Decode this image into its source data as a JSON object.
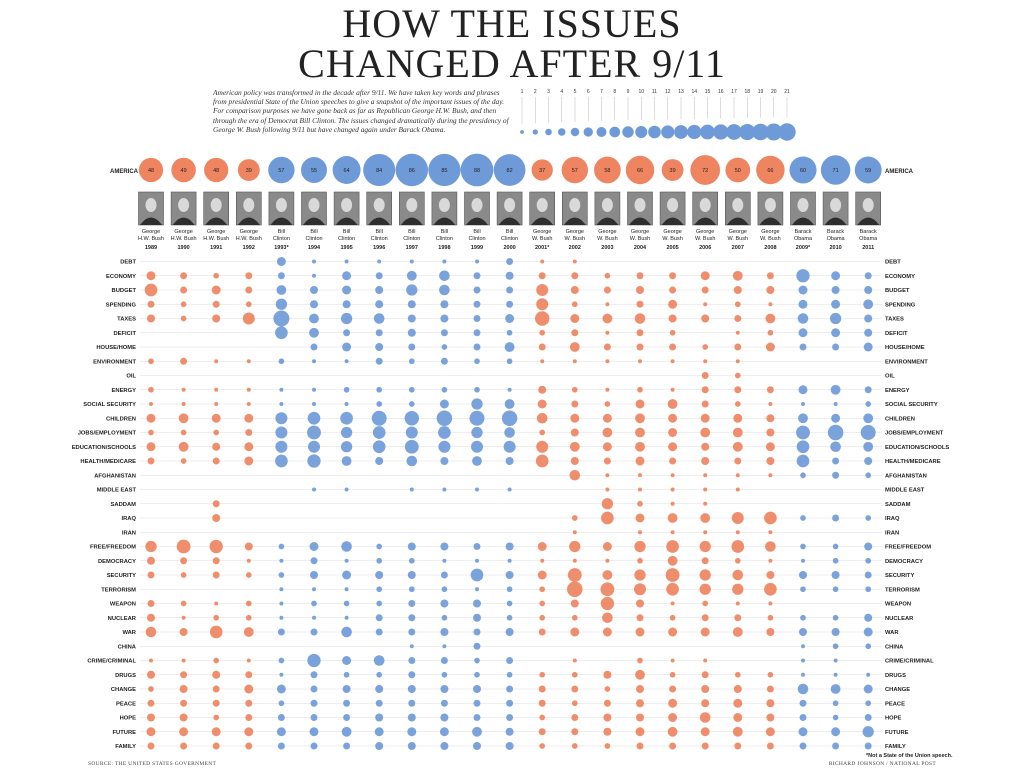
{
  "title_line1": "HOW THE ISSUES",
  "title_line2": "CHANGED AFTER 9/11",
  "intro": "American policy was transformed in the decade after 9/11. We have taken key words and phrases from presidential State of the Union speeches to give a snapshot of the important issues of the day. For comparison purposes we have gone back as far as Republican George H.W. Bush, and then through the era of Democrat Bill Clinton. The issues changed dramatically during the presidency of George W. Bush following 9/11 but have changed again under Barack Obama.",
  "source": "SOURCE: THE UNITED STATES GOVERNMENT",
  "credit": "RICHARD JOHNSON / NATIONAL POST",
  "footnote": "*Not a State of the Union speech.",
  "colors": {
    "republican": "#EE8460",
    "democrat": "#6F9AD8",
    "line": "#dddddd"
  },
  "chart_data": {
    "type": "scatter",
    "title": "HOW THE ISSUES CHANGED AFTER 9/11",
    "size_legend": {
      "values": [
        1,
        2,
        3,
        4,
        5,
        6,
        7,
        8,
        9,
        10,
        11,
        12,
        13,
        14,
        15,
        16,
        17,
        18,
        19,
        20,
        21
      ]
    },
    "row_label_america": "AMERICA",
    "columns": [
      {
        "president": "George H.W. Bush",
        "line1": "George",
        "line2": "H.W. Bush",
        "year": "1989",
        "party": "R",
        "america": 48,
        "portrait": "portrait-icon"
      },
      {
        "president": "George H.W. Bush",
        "line1": "George",
        "line2": "H.W. Bush",
        "year": "1990",
        "party": "R",
        "america": 49,
        "portrait": "portrait-icon"
      },
      {
        "president": "George H.W. Bush",
        "line1": "George",
        "line2": "H.W. Bush",
        "year": "1991",
        "party": "R",
        "america": 48,
        "portrait": "portrait-icon"
      },
      {
        "president": "George H.W. Bush",
        "line1": "George",
        "line2": "H.W. Bush",
        "year": "1992",
        "party": "R",
        "america": 39,
        "portrait": "portrait-icon"
      },
      {
        "president": "Bill Clinton",
        "line1": "Bill",
        "line2": "Clinton",
        "year": "1993*",
        "party": "D",
        "america": 57,
        "portrait": "portrait-icon"
      },
      {
        "president": "Bill Clinton",
        "line1": "Bill",
        "line2": "Clinton",
        "year": "1994",
        "party": "D",
        "america": 55,
        "portrait": "portrait-icon"
      },
      {
        "president": "Bill Clinton",
        "line1": "Bill",
        "line2": "Clinton",
        "year": "1995",
        "party": "D",
        "america": 64,
        "portrait": "portrait-icon"
      },
      {
        "president": "Bill Clinton",
        "line1": "Bill",
        "line2": "Clinton",
        "year": "1996",
        "party": "D",
        "america": 84,
        "portrait": "portrait-icon"
      },
      {
        "president": "Bill Clinton",
        "line1": "Bill",
        "line2": "Clinton",
        "year": "1997",
        "party": "D",
        "america": 86,
        "portrait": "portrait-icon"
      },
      {
        "president": "Bill Clinton",
        "line1": "Bill",
        "line2": "Clinton",
        "year": "1998",
        "party": "D",
        "america": 85,
        "portrait": "portrait-icon"
      },
      {
        "president": "Bill Clinton",
        "line1": "Bill",
        "line2": "Clinton",
        "year": "1999",
        "party": "D",
        "america": 88,
        "portrait": "portrait-icon"
      },
      {
        "president": "Bill Clinton",
        "line1": "Bill",
        "line2": "Clinton",
        "year": "2000",
        "party": "D",
        "america": 82,
        "portrait": "portrait-icon"
      },
      {
        "president": "George W. Bush",
        "line1": "George",
        "line2": "W. Bush",
        "year": "2001*",
        "party": "R",
        "america": 37,
        "portrait": "portrait-icon"
      },
      {
        "president": "George W. Bush",
        "line1": "George",
        "line2": "W. Bush",
        "year": "2002",
        "party": "R",
        "america": 57,
        "portrait": "portrait-icon"
      },
      {
        "president": "George W. Bush",
        "line1": "George",
        "line2": "W. Bush",
        "year": "2003",
        "party": "R",
        "america": 58,
        "portrait": "portrait-icon"
      },
      {
        "president": "George W. Bush",
        "line1": "George",
        "line2": "W. Bush",
        "year": "2004",
        "party": "R",
        "america": 66,
        "portrait": "portrait-icon"
      },
      {
        "president": "George W. Bush",
        "line1": "George",
        "line2": "W. Bush",
        "year": "2005",
        "party": "R",
        "america": 39,
        "portrait": "portrait-icon"
      },
      {
        "president": "George W. Bush",
        "line1": "George",
        "line2": "W. Bush",
        "year": "2006",
        "party": "R",
        "america": 72,
        "portrait": "portrait-icon"
      },
      {
        "president": "George W. Bush",
        "line1": "George",
        "line2": "W. Bush",
        "year": "2007",
        "party": "R",
        "america": 50,
        "portrait": "portrait-icon"
      },
      {
        "president": "George W. Bush",
        "line1": "George",
        "line2": "W. Bush",
        "year": "2008",
        "party": "R",
        "america": 66,
        "portrait": "portrait-icon"
      },
      {
        "president": "Barack Obama",
        "line1": "Barack",
        "line2": "Obama",
        "year": "2009*",
        "party": "D",
        "america": 60,
        "portrait": "portrait-icon"
      },
      {
        "president": "Barack Obama",
        "line1": "Barack",
        "line2": "Obama",
        "year": "2010",
        "party": "D",
        "america": 71,
        "portrait": "portrait-icon"
      },
      {
        "president": "Barack Obama",
        "line1": "Barack",
        "line2": "Obama",
        "year": "2011",
        "party": "D",
        "america": 59,
        "portrait": "portrait-icon"
      }
    ],
    "issues": [
      {
        "name": "DEBT",
        "values": [
          0,
          0,
          0,
          0,
          5,
          1,
          1,
          1,
          1,
          1,
          1,
          3,
          1,
          1,
          0,
          0,
          0,
          0,
          0,
          0,
          0,
          0,
          0
        ]
      },
      {
        "name": "ECONOMY",
        "values": [
          5,
          3,
          2,
          3,
          3,
          1,
          5,
          3,
          6,
          7,
          3,
          4,
          3,
          3,
          2,
          3,
          3,
          5,
          6,
          3,
          11,
          5,
          3
        ]
      },
      {
        "name": "BUDGET",
        "values": [
          10,
          3,
          5,
          3,
          6,
          4,
          5,
          4,
          8,
          7,
          3,
          3,
          9,
          4,
          3,
          4,
          3,
          3,
          4,
          4,
          5,
          4,
          4
        ]
      },
      {
        "name": "SPENDING",
        "values": [
          3,
          2,
          3,
          2,
          8,
          4,
          4,
          4,
          4,
          4,
          3,
          3,
          9,
          2,
          1,
          3,
          5,
          1,
          2,
          1,
          5,
          5,
          6
        ]
      },
      {
        "name": "TAXES",
        "values": [
          4,
          2,
          4,
          9,
          16,
          6,
          8,
          7,
          4,
          4,
          3,
          5,
          13,
          5,
          6,
          7,
          4,
          4,
          3,
          6,
          7,
          8,
          4
        ]
      },
      {
        "name": "DEFICIT",
        "values": [
          0,
          0,
          0,
          0,
          10,
          6,
          3,
          3,
          4,
          3,
          3,
          2,
          2,
          3,
          1,
          3,
          2,
          0,
          1,
          2,
          5,
          5,
          4
        ]
      },
      {
        "name": "HOUSE/HOME",
        "values": [
          0,
          0,
          0,
          0,
          0,
          3,
          5,
          4,
          3,
          2,
          3,
          6,
          3,
          6,
          3,
          3,
          3,
          2,
          3,
          5,
          3,
          3,
          5
        ]
      },
      {
        "name": "ENVIRONMENT",
        "values": [
          2,
          3,
          1,
          1,
          2,
          1,
          1,
          3,
          2,
          3,
          2,
          2,
          1,
          1,
          1,
          1,
          1,
          1,
          1,
          0,
          0,
          0,
          0
        ]
      },
      {
        "name": "OIL",
        "values": [
          0,
          0,
          0,
          0,
          0,
          0,
          0,
          0,
          0,
          0,
          0,
          0,
          0,
          0,
          0,
          0,
          0,
          3,
          2,
          0,
          0,
          0,
          0
        ]
      },
      {
        "name": "ENERGY",
        "values": [
          2,
          1,
          1,
          1,
          1,
          1,
          2,
          2,
          2,
          2,
          2,
          1,
          4,
          2,
          1,
          2,
          1,
          3,
          3,
          3,
          5,
          6,
          3
        ]
      },
      {
        "name": "SOCIAL SECURITY",
        "values": [
          1,
          1,
          1,
          1,
          1,
          1,
          1,
          2,
          2,
          5,
          8,
          6,
          5,
          3,
          2,
          5,
          6,
          3,
          2,
          1,
          1,
          1,
          2
        ]
      },
      {
        "name": "CHILDREN",
        "values": [
          5,
          6,
          5,
          5,
          9,
          10,
          10,
          14,
          13,
          15,
          14,
          15,
          7,
          5,
          5,
          6,
          5,
          5,
          5,
          4,
          6,
          5,
          6
        ]
      },
      {
        "name": "JOBS/EMPLOYMENT",
        "values": [
          2,
          2,
          2,
          3,
          9,
          12,
          8,
          10,
          9,
          10,
          8,
          7,
          2,
          4,
          6,
          6,
          5,
          6,
          6,
          4,
          12,
          15,
          14
        ]
      },
      {
        "name": "EDUCATION/SCHOOLS",
        "values": [
          5,
          6,
          4,
          5,
          9,
          9,
          8,
          10,
          12,
          9,
          9,
          9,
          9,
          6,
          5,
          6,
          5,
          4,
          6,
          5,
          10,
          7,
          6
        ]
      },
      {
        "name": "HEALTH/MEDICARE",
        "values": [
          3,
          2,
          3,
          5,
          10,
          11,
          6,
          4,
          7,
          4,
          6,
          4,
          10,
          4,
          3,
          5,
          3,
          4,
          3,
          4,
          10,
          3,
          4
        ]
      },
      {
        "name": "AFGHANISTAN",
        "values": [
          0,
          0,
          0,
          0,
          0,
          0,
          0,
          0,
          0,
          0,
          0,
          0,
          0,
          7,
          1,
          1,
          1,
          1,
          1,
          1,
          2,
          3,
          2
        ]
      },
      {
        "name": "MIDDLE EAST",
        "values": [
          0,
          0,
          0,
          0,
          0,
          1,
          1,
          0,
          1,
          1,
          1,
          1,
          0,
          0,
          1,
          1,
          1,
          1,
          1,
          0,
          0,
          0,
          0
        ]
      },
      {
        "name": "SADDAM",
        "values": [
          0,
          0,
          3,
          0,
          0,
          0,
          0,
          0,
          0,
          0,
          0,
          0,
          0,
          0,
          8,
          2,
          1,
          1,
          0,
          0,
          0,
          0,
          0
        ]
      },
      {
        "name": "IRAQ",
        "values": [
          0,
          0,
          4,
          0,
          0,
          0,
          0,
          0,
          0,
          0,
          0,
          0,
          0,
          2,
          10,
          5,
          6,
          6,
          9,
          10,
          2,
          3,
          2
        ]
      },
      {
        "name": "IRAN",
        "values": [
          0,
          0,
          0,
          0,
          0,
          0,
          0,
          0,
          0,
          0,
          0,
          0,
          0,
          1,
          0,
          1,
          1,
          1,
          1,
          1,
          0,
          0,
          0
        ]
      },
      {
        "name": "FREE/FREEDOM",
        "values": [
          8,
          12,
          11,
          4,
          2,
          5,
          7,
          2,
          4,
          4,
          3,
          4,
          5,
          8,
          5,
          8,
          10,
          8,
          10,
          7,
          2,
          2,
          4
        ]
      },
      {
        "name": "DEMOCRACY",
        "values": [
          4,
          3,
          3,
          1,
          1,
          3,
          1,
          2,
          2,
          1,
          1,
          1,
          1,
          1,
          1,
          2,
          6,
          3,
          2,
          1,
          1,
          2,
          2
        ]
      },
      {
        "name": "SECURITY",
        "values": [
          3,
          2,
          3,
          2,
          2,
          4,
          5,
          4,
          4,
          3,
          10,
          4,
          5,
          12,
          6,
          8,
          12,
          8,
          7,
          4,
          4,
          4,
          3
        ]
      },
      {
        "name": "TERRORISM",
        "values": [
          0,
          0,
          0,
          0,
          1,
          1,
          1,
          2,
          2,
          2,
          1,
          2,
          2,
          15,
          12,
          9,
          10,
          8,
          8,
          10,
          2,
          2,
          2
        ]
      },
      {
        "name": "WEAPON",
        "values": [
          3,
          2,
          1,
          2,
          1,
          2,
          2,
          2,
          3,
          4,
          4,
          2,
          2,
          4,
          11,
          4,
          1,
          2,
          1,
          1,
          0,
          0,
          0
        ]
      },
      {
        "name": "NUCLEAR",
        "values": [
          4,
          1,
          2,
          2,
          1,
          1,
          1,
          3,
          3,
          2,
          4,
          2,
          2,
          2,
          7,
          3,
          2,
          3,
          3,
          2,
          2,
          2,
          4
        ]
      },
      {
        "name": "WAR",
        "values": [
          7,
          4,
          10,
          6,
          3,
          3,
          7,
          3,
          3,
          4,
          3,
          4,
          3,
          5,
          5,
          5,
          5,
          5,
          6,
          4,
          4,
          4,
          5
        ]
      },
      {
        "name": "CHINA",
        "values": [
          0,
          0,
          0,
          0,
          0,
          0,
          0,
          0,
          1,
          1,
          3,
          0,
          0,
          0,
          0,
          0,
          0,
          0,
          0,
          0,
          1,
          2,
          2
        ]
      },
      {
        "name": "CRIME/CRIMINAL",
        "values": [
          1,
          1,
          2,
          1,
          2,
          11,
          5,
          7,
          3,
          3,
          2,
          3,
          0,
          1,
          0,
          2,
          1,
          1,
          0,
          0,
          1,
          1,
          0
        ]
      },
      {
        "name": "DRUGS",
        "values": [
          4,
          3,
          4,
          3,
          1,
          3,
          2,
          2,
          3,
          2,
          2,
          2,
          2,
          2,
          4,
          6,
          2,
          3,
          2,
          2,
          1,
          1,
          1
        ]
      },
      {
        "name": "CHANGE",
        "values": [
          2,
          4,
          3,
          5,
          5,
          3,
          4,
          4,
          4,
          4,
          4,
          3,
          3,
          3,
          2,
          4,
          3,
          4,
          4,
          3,
          7,
          6,
          5
        ]
      },
      {
        "name": "PEACE",
        "values": [
          3,
          3,
          3,
          3,
          2,
          3,
          3,
          3,
          3,
          3,
          3,
          3,
          3,
          2,
          3,
          4,
          5,
          4,
          5,
          4,
          3,
          2,
          2
        ]
      },
      {
        "name": "HOPE",
        "values": [
          4,
          4,
          2,
          3,
          3,
          3,
          3,
          4,
          4,
          4,
          3,
          3,
          2,
          3,
          4,
          4,
          5,
          7,
          5,
          4,
          3,
          2,
          3
        ]
      },
      {
        "name": "FUTURE",
        "values": [
          5,
          5,
          5,
          5,
          5,
          5,
          6,
          5,
          5,
          5,
          6,
          4,
          3,
          3,
          4,
          5,
          6,
          5,
          6,
          5,
          5,
          5,
          8
        ]
      },
      {
        "name": "FAMILY",
        "values": [
          3,
          3,
          3,
          3,
          3,
          3,
          3,
          4,
          4,
          4,
          4,
          4,
          2,
          2,
          2,
          3,
          3,
          3,
          3,
          3,
          3,
          3,
          3
        ]
      }
    ]
  }
}
